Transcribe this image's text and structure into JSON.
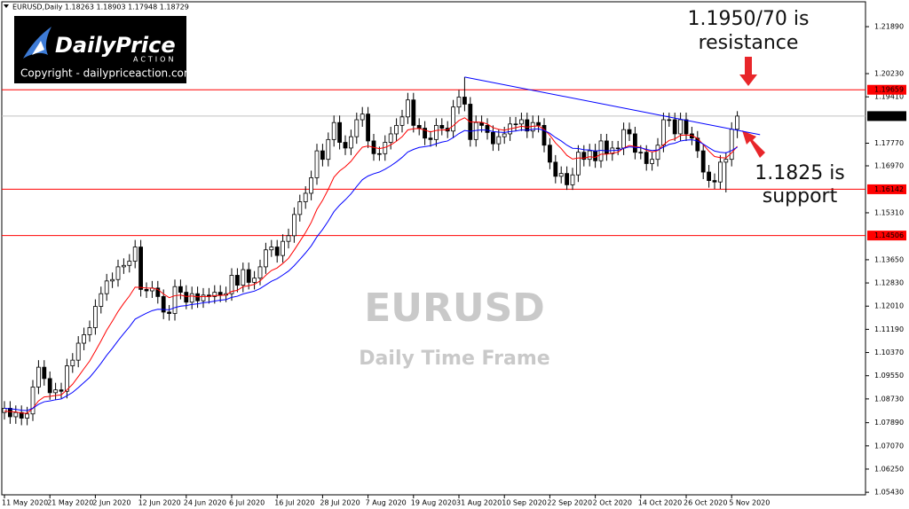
{
  "chart_data": {
    "type": "candlestick",
    "header": "EURUSD,Daily  1.18263 1.18903 1.17948 1.18729",
    "categories": [
      "11 May 2020",
      null,
      null,
      null,
      null,
      null,
      null,
      null,
      "21 May 2020",
      null,
      null,
      null,
      null,
      null,
      null,
      null,
      "2 Jun 2020",
      null,
      null,
      null,
      null,
      null,
      null,
      null,
      "12 Jun 2020",
      null,
      null,
      null,
      null,
      null,
      null,
      null,
      "24 Jun 2020",
      null,
      null,
      null,
      null,
      null,
      null,
      null,
      "6 Jul 2020",
      null,
      null,
      null,
      null,
      null,
      null,
      null,
      "16 Jul 2020",
      null,
      null,
      null,
      null,
      null,
      null,
      null,
      "28 Jul 2020",
      null,
      null,
      null,
      null,
      null,
      null,
      null,
      "7 Aug 2020",
      null,
      null,
      null,
      null,
      null,
      null,
      null,
      "19 Aug 2020",
      null,
      null,
      null,
      null,
      null,
      null,
      null,
      "31 Aug 2020",
      null,
      null,
      null,
      null,
      null,
      null,
      null,
      "10 Sep 2020",
      null,
      null,
      null,
      null,
      null,
      null,
      null,
      "22 Sep 2020",
      null,
      null,
      null,
      null,
      null,
      null,
      null,
      "2 Oct 2020",
      null,
      null,
      null,
      null,
      null,
      null,
      null,
      "14 Oct 2020",
      null,
      null,
      null,
      null,
      null,
      null,
      null,
      "26 Oct 2020",
      null,
      null,
      null,
      null,
      null,
      null,
      null,
      "5 Nov 2020",
      null
    ],
    "open": [
      1.0825,
      1.084,
      1.081,
      1.0825,
      1.0805,
      1.082,
      1.0915,
      1.0985,
      1.0945,
      1.0895,
      1.0905,
      1.09,
      1.099,
      1.101,
      1.107,
      1.11,
      1.1125,
      1.12,
      1.1245,
      1.129,
      1.1295,
      1.134,
      1.1345,
      1.136,
      1.141,
      1.126,
      1.1255,
      1.1265,
      1.1235,
      1.118,
      1.1175,
      1.127,
      1.125,
      1.1215,
      1.1245,
      1.122,
      1.124,
      1.1235,
      1.125,
      1.124,
      1.1245,
      1.131,
      1.1275,
      1.133,
      1.1285,
      1.13,
      1.134,
      1.14,
      1.141,
      1.138,
      1.143,
      1.145,
      1.1525,
      1.157,
      1.16,
      1.1655,
      1.175,
      1.172,
      1.179,
      1.185,
      1.178,
      1.176,
      1.18,
      1.186,
      1.188,
      1.1785,
      1.174,
      1.174,
      1.178,
      1.181,
      1.184,
      1.187,
      1.193,
      1.184,
      1.183,
      1.1795,
      1.179,
      1.184,
      1.183,
      1.182,
      1.1905,
      1.194,
      1.1915,
      1.179,
      1.185,
      1.184,
      1.1815,
      1.1775,
      1.18,
      1.181,
      1.1845,
      1.1845,
      1.186,
      1.182,
      1.185,
      1.184,
      1.177,
      1.171,
      1.166,
      1.167,
      1.163,
      1.1665,
      1.1745,
      1.172,
      1.175,
      1.1715,
      1.1785,
      1.174,
      1.176,
      1.176,
      1.1825,
      1.181,
      1.1745,
      1.1745,
      1.1705,
      1.172,
      1.177,
      1.186,
      1.186,
      1.181,
      1.186,
      1.181,
      1.1795,
      1.175,
      1.1675,
      1.1645,
      1.164,
      1.171,
      1.172,
      1.18263
    ],
    "high": [
      1.0865,
      1.0865,
      1.085,
      1.085,
      1.0845,
      1.094,
      1.101,
      1.101,
      1.097,
      1.093,
      1.093,
      1.1015,
      1.1035,
      1.1095,
      1.1125,
      1.115,
      1.1225,
      1.127,
      1.1315,
      1.132,
      1.1365,
      1.137,
      1.1385,
      1.1435,
      1.1435,
      1.1285,
      1.129,
      1.129,
      1.126,
      1.1205,
      1.1295,
      1.1295,
      1.1275,
      1.127,
      1.127,
      1.1265,
      1.1265,
      1.1275,
      1.1275,
      1.127,
      1.1335,
      1.1335,
      1.1355,
      1.1355,
      1.1325,
      1.1365,
      1.1425,
      1.1435,
      1.1435,
      1.1455,
      1.1475,
      1.155,
      1.1595,
      1.1625,
      1.168,
      1.1775,
      1.1775,
      1.1815,
      1.1875,
      1.1875,
      1.1805,
      1.1825,
      1.1885,
      1.1905,
      1.1905,
      1.181,
      1.1765,
      1.1805,
      1.1835,
      1.1865,
      1.1895,
      1.1955,
      1.1955,
      1.1865,
      1.1855,
      1.182,
      1.1865,
      1.1865,
      1.1855,
      1.193,
      1.1965,
      1.2011,
      1.194,
      1.1875,
      1.1875,
      1.1865,
      1.184,
      1.1825,
      1.1835,
      1.187,
      1.187,
      1.1885,
      1.1885,
      1.1875,
      1.1875,
      1.1865,
      1.1795,
      1.1735,
      1.1695,
      1.1695,
      1.169,
      1.177,
      1.177,
      1.1775,
      1.1775,
      1.181,
      1.181,
      1.1785,
      1.1785,
      1.185,
      1.185,
      1.1835,
      1.177,
      1.177,
      1.1745,
      1.1795,
      1.1885,
      1.1885,
      1.1885,
      1.1885,
      1.1885,
      1.1835,
      1.182,
      1.1775,
      1.17,
      1.167,
      1.1735,
      1.1745,
      1.1851,
      1.18903
    ],
    "low": [
      1.08,
      1.0785,
      1.0785,
      1.078,
      1.078,
      1.0795,
      1.089,
      1.092,
      1.087,
      1.087,
      1.0875,
      1.0875,
      1.0965,
      1.0985,
      1.1045,
      1.1075,
      1.11,
      1.1175,
      1.122,
      1.1265,
      1.127,
      1.1315,
      1.132,
      1.1335,
      1.1235,
      1.123,
      1.123,
      1.121,
      1.1155,
      1.115,
      1.115,
      1.1225,
      1.119,
      1.119,
      1.1195,
      1.1195,
      1.121,
      1.121,
      1.1215,
      1.1215,
      1.122,
      1.125,
      1.125,
      1.126,
      1.126,
      1.1275,
      1.1315,
      1.1375,
      1.1355,
      1.1355,
      1.1405,
      1.1425,
      1.15,
      1.1545,
      1.1575,
      1.163,
      1.1695,
      1.1695,
      1.1765,
      1.1755,
      1.1735,
      1.1735,
      1.1775,
      1.1835,
      1.176,
      1.1715,
      1.1715,
      1.1715,
      1.1755,
      1.1785,
      1.1815,
      1.1845,
      1.1815,
      1.1805,
      1.177,
      1.1765,
      1.1765,
      1.1805,
      1.1795,
      1.1795,
      1.188,
      1.189,
      1.1765,
      1.1765,
      1.1815,
      1.179,
      1.175,
      1.175,
      1.1775,
      1.1785,
      1.182,
      1.182,
      1.1795,
      1.1795,
      1.1815,
      1.1745,
      1.1685,
      1.1635,
      1.1635,
      1.1612,
      1.1612,
      1.164,
      1.1695,
      1.1695,
      1.169,
      1.169,
      1.1715,
      1.1715,
      1.1735,
      1.1735,
      1.1785,
      1.172,
      1.172,
      1.168,
      1.168,
      1.1695,
      1.1745,
      1.1835,
      1.1785,
      1.1785,
      1.1785,
      1.177,
      1.1725,
      1.165,
      1.162,
      1.1615,
      1.1615,
      1.1603,
      1.1695,
      1.17948
    ],
    "close": [
      1.084,
      1.081,
      1.0825,
      1.0805,
      1.082,
      1.0915,
      1.0985,
      1.0945,
      1.0895,
      1.0905,
      1.09,
      1.099,
      1.101,
      1.107,
      1.11,
      1.1125,
      1.12,
      1.1245,
      1.129,
      1.1295,
      1.134,
      1.1345,
      1.136,
      1.141,
      1.126,
      1.1255,
      1.1265,
      1.1235,
      1.118,
      1.1175,
      1.127,
      1.125,
      1.1215,
      1.1245,
      1.122,
      1.124,
      1.1235,
      1.125,
      1.124,
      1.1245,
      1.131,
      1.1275,
      1.133,
      1.1285,
      1.13,
      1.134,
      1.14,
      1.141,
      1.138,
      1.143,
      1.145,
      1.1525,
      1.157,
      1.16,
      1.1655,
      1.175,
      1.172,
      1.179,
      1.185,
      1.178,
      1.176,
      1.18,
      1.186,
      1.188,
      1.1785,
      1.174,
      1.174,
      1.178,
      1.181,
      1.184,
      1.187,
      1.193,
      1.184,
      1.183,
      1.1795,
      1.179,
      1.184,
      1.183,
      1.182,
      1.1905,
      1.194,
      1.1915,
      1.179,
      1.185,
      1.184,
      1.1815,
      1.1775,
      1.18,
      1.181,
      1.1845,
      1.1845,
      1.186,
      1.182,
      1.185,
      1.184,
      1.177,
      1.171,
      1.166,
      1.167,
      1.163,
      1.1665,
      1.1745,
      1.172,
      1.175,
      1.1715,
      1.1785,
      1.174,
      1.176,
      1.176,
      1.1825,
      1.181,
      1.1745,
      1.1745,
      1.1705,
      1.172,
      1.177,
      1.186,
      1.186,
      1.181,
      1.186,
      1.181,
      1.1795,
      1.175,
      1.1675,
      1.1645,
      1.164,
      1.171,
      1.172,
      1.18263,
      1.18729
    ],
    "up_color": "#ffffff",
    "down_color": "#000000",
    "lines": [
      {
        "color": "#ff0000",
        "values": [
          1.083,
          1.0828,
          1.0827,
          1.0823,
          1.0822,
          1.084,
          1.0866,
          1.088,
          1.0882,
          1.0885,
          1.0887,
          1.0905,
          1.0925,
          1.0952,
          1.098,
          1.1007,
          1.1042,
          1.1078,
          1.1116,
          1.1148,
          1.1182,
          1.1211,
          1.1237,
          1.1268,
          1.1267,
          1.1265,
          1.1265,
          1.126,
          1.1244,
          1.1231,
          1.1238,
          1.124,
          1.1235,
          1.1237,
          1.1234,
          1.1235,
          1.1235,
          1.1238,
          1.1239,
          1.124,
          1.1253,
          1.1257,
          1.127,
          1.1273,
          1.1278,
          1.129,
          1.131,
          1.1327,
          1.1336,
          1.1352,
          1.137,
          1.1399,
          1.143,
          1.1461,
          1.1497,
          1.1543,
          1.1575,
          1.1614,
          1.1657,
          1.1679,
          1.1694,
          1.1713,
          1.1739,
          1.1763,
          1.1767,
          1.1762,
          1.1758,
          1.1762,
          1.1771,
          1.1784,
          1.18,
          1.1824,
          1.1828,
          1.1829,
          1.1823,
          1.1817,
          1.1822,
          1.1824,
          1.1824,
          1.1839,
          1.1857,
          1.1867,
          1.1852,
          1.1852,
          1.1851,
          1.1845,
          1.1832,
          1.1826,
          1.1823,
          1.1828,
          1.1832,
          1.1837,
          1.1834,
          1.1837,
          1.1838,
          1.1826,
          1.1805,
          1.1778,
          1.1758,
          1.1734,
          1.1721,
          1.1725,
          1.1724,
          1.1729,
          1.1727,
          1.1738,
          1.1738,
          1.1742,
          1.1745,
          1.176,
          1.1769,
          1.1765,
          1.1762,
          1.1752,
          1.1746,
          1.1751,
          1.1771,
          1.1787,
          1.1792,
          1.1805,
          1.1806,
          1.1804,
          1.1794,
          1.1772,
          1.1749,
          1.173,
          1.1726,
          1.1725,
          1.1743,
          1.1766
        ]
      },
      {
        "color": "#0000ff",
        "values": [
          1.084,
          1.0838,
          1.0836,
          1.0833,
          1.0832,
          1.084,
          1.0854,
          1.0863,
          1.0866,
          1.087,
          1.0873,
          1.0884,
          1.0896,
          1.0913,
          1.0931,
          1.0949,
          1.0973,
          1.0999,
          1.1027,
          1.1052,
          1.1079,
          1.1104,
          1.1128,
          1.1155,
          1.1166,
          1.1176,
          1.1185,
          1.119,
          1.1189,
          1.1188,
          1.1196,
          1.1201,
          1.1203,
          1.1207,
          1.1209,
          1.1213,
          1.1215,
          1.1219,
          1.1222,
          1.1224,
          1.1232,
          1.1236,
          1.1244,
          1.1249,
          1.1254,
          1.1263,
          1.1276,
          1.1289,
          1.1298,
          1.1311,
          1.1325,
          1.1344,
          1.1366,
          1.1389,
          1.1414,
          1.1446,
          1.1472,
          1.1502,
          1.1535,
          1.1558,
          1.1577,
          1.1598,
          1.1624,
          1.1648,
          1.1661,
          1.1669,
          1.1675,
          1.1685,
          1.1697,
          1.1711,
          1.1727,
          1.1746,
          1.1755,
          1.1762,
          1.1765,
          1.1768,
          1.1775,
          1.1781,
          1.1785,
          1.1797,
          1.1811,
          1.1822,
          1.1819,
          1.1822,
          1.1824,
          1.1823,
          1.1818,
          1.1816,
          1.1815,
          1.1818,
          1.182,
          1.1824,
          1.1823,
          1.1826,
          1.1828,
          1.1822,
          1.1812,
          1.1797,
          1.1785,
          1.177,
          1.1759,
          1.1758,
          1.1754,
          1.1753,
          1.1749,
          1.1752,
          1.175,
          1.1751,
          1.1752,
          1.1759,
          1.1764,
          1.1762,
          1.1761,
          1.1755,
          1.1751,
          1.1753,
          1.1763,
          1.1773,
          1.1777,
          1.1785,
          1.1788,
          1.1789,
          1.1785,
          1.1774,
          1.1761,
          1.1749,
          1.1745,
          1.1743,
          1.1751,
          1.1763
        ]
      }
    ],
    "trendline": {
      "color": "#0000ff",
      "values": [
        1.2011,
        1.1807
      ]
    },
    "levels": [
      1.19659,
      1.16142,
      1.14506
    ],
    "level_color": "#ff0000",
    "current_price": 1.18729,
    "ylim": [
      1.0534,
      1.2277
    ],
    "yticks": [
      {
        "value": 1.2189,
        "label": "1.21890"
      },
      {
        "value": 1.2023,
        "label": "1.20230"
      },
      {
        "value": 1.1941,
        "label": "1.19410"
      },
      {
        "value": 1.1777,
        "label": "1.17770"
      },
      {
        "value": 1.1697,
        "label": "1.16970"
      },
      {
        "value": 1.1531,
        "label": "1.15310"
      },
      {
        "value": 1.1365,
        "label": "1.13650"
      },
      {
        "value": 1.1283,
        "label": "1.12830"
      },
      {
        "value": 1.1201,
        "label": "1.12010"
      },
      {
        "value": 1.1119,
        "label": "1.11190"
      },
      {
        "value": 1.1037,
        "label": "1.10370"
      },
      {
        "value": 1.0955,
        "label": "1.09550"
      },
      {
        "value": 1.0873,
        "label": "1.08730"
      },
      {
        "value": 1.0789,
        "label": "1.07890"
      },
      {
        "value": 1.0707,
        "label": "1.07070"
      },
      {
        "value": 1.0625,
        "label": "1.06250"
      },
      {
        "value": 1.0543,
        "label": "1.05430"
      }
    ],
    "annotations": {
      "resistance": [
        "1.1950/70 is",
        "resistance"
      ],
      "support": [
        "1.1825 is",
        "support"
      ]
    },
    "watermark": {
      "title": "EURUSD",
      "subtitle": "Daily Time Frame"
    },
    "logo": {
      "brand": "DailyPrice",
      "tagline": "ACTION",
      "copyright": "Copyright - dailypriceaction.com"
    }
  }
}
